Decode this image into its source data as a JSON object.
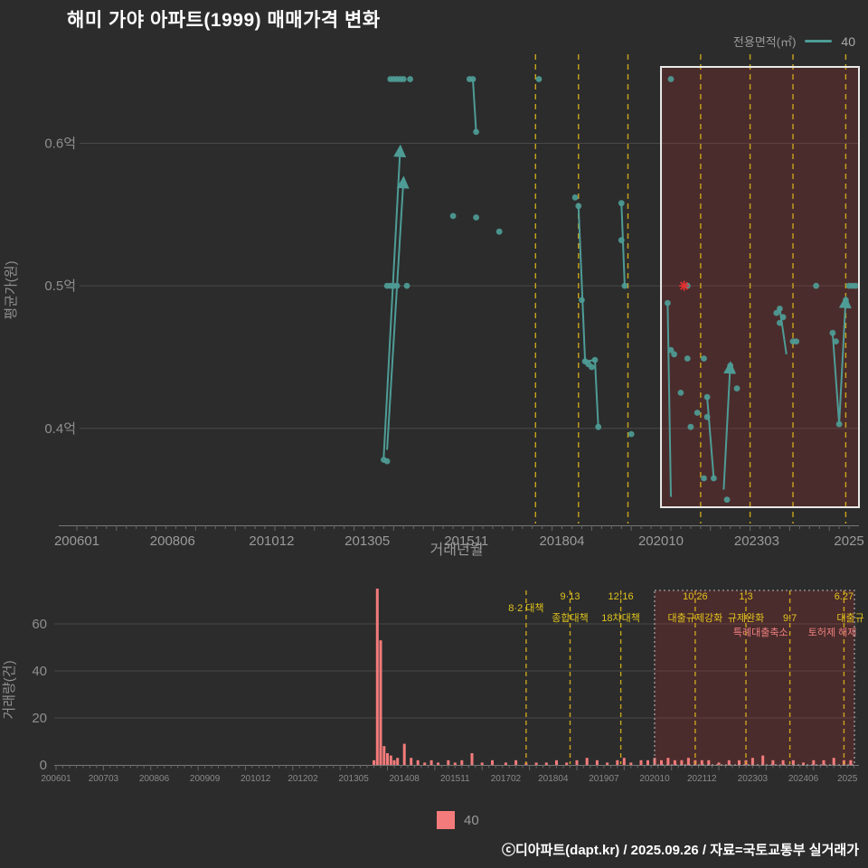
{
  "title": "해미 가야 아파트(1999) 매매가격 변화",
  "legend_top": {
    "label": "전용면적(㎡)",
    "series": "40"
  },
  "legend_bottom": {
    "series": "40"
  },
  "footer": "ⓒ디아파트(dapt.kr) / 2025.09.26 / 자료=국토교통부 실거래가",
  "colors": {
    "background": "#2c2c2c",
    "grid": "#494949",
    "axis_text": "#8f8f8f",
    "teal": "#4e9c96",
    "bar": "#f47b7b",
    "event": "#c9a41c",
    "annotation_yellow": "#e0c41e",
    "annotation_red": "#f08080",
    "box_fill": "rgba(150,45,45,0.30)",
    "box_border_main": "#e9e9e9",
    "box_border_volume": "#a0a0a0",
    "marker_red": "#e03131"
  },
  "chart_data": [
    {
      "type": "scatter",
      "series_name": "40",
      "xlabel": "거래년월",
      "ylabel": "평균가(원)",
      "x_range": [
        "200601",
        "202510"
      ],
      "y_range": [
        0.332,
        0.665
      ],
      "grid": true,
      "y_ticks": [
        {
          "v": 0.4,
          "label": "0.4억"
        },
        {
          "v": 0.5,
          "label": "0.5억"
        },
        {
          "v": 0.6,
          "label": "0.6억"
        }
      ],
      "x_ticks": [
        [
          "200601",
          "200601"
        ],
        [
          "200806",
          "200806"
        ],
        [
          "201012",
          "201012"
        ],
        [
          "201305",
          "201305"
        ],
        [
          "201511",
          "201511"
        ],
        [
          "201804",
          "201804"
        ],
        [
          "202010",
          "202010"
        ],
        [
          "202303",
          "202303"
        ],
        [
          "202507",
          "2025"
        ]
      ],
      "highlight": {
        "from": "202010",
        "to": "202510"
      },
      "event_months": [
        "201708",
        "201809",
        "201912",
        "202110",
        "202301",
        "202402",
        "202506"
      ],
      "x_marker": [
        "202105",
        0.5
      ],
      "points": [
        [
          "201310",
          0.378
        ],
        [
          "201311",
          0.377
        ],
        [
          "201311",
          0.5
        ],
        [
          "201312",
          0.5
        ],
        [
          "201401",
          0.5
        ],
        [
          "201402",
          0.5
        ],
        [
          "201405",
          0.5
        ],
        [
          "201312",
          0.645
        ],
        [
          "201401",
          0.645
        ],
        [
          "201402",
          0.645
        ],
        [
          "201403",
          0.645
        ],
        [
          "201404",
          0.645
        ],
        [
          "201406",
          0.645
        ],
        [
          "201507",
          0.549
        ],
        [
          "201512",
          0.645
        ],
        [
          "201601",
          0.645
        ],
        [
          "201602",
          0.608
        ],
        [
          "201602",
          0.548
        ],
        [
          "201609",
          0.538
        ],
        [
          "201709",
          0.645
        ],
        [
          "201808",
          0.562
        ],
        [
          "201809",
          0.556
        ],
        [
          "201810",
          0.49
        ],
        [
          "201811",
          0.447
        ],
        [
          "201812",
          0.445
        ],
        [
          "201901",
          0.443
        ],
        [
          "201902",
          0.448
        ],
        [
          "201903",
          0.401
        ],
        [
          "201910",
          0.558
        ],
        [
          "201910",
          0.532
        ],
        [
          "201911",
          0.5
        ],
        [
          "202001",
          0.396
        ],
        [
          "202101",
          0.645
        ],
        [
          "202012",
          0.488
        ],
        [
          "202101",
          0.455
        ],
        [
          "202102",
          0.452
        ],
        [
          "202104",
          0.425
        ],
        [
          "202106",
          0.449
        ],
        [
          "202107",
          0.401
        ],
        [
          "202109",
          0.411
        ],
        [
          "202106",
          0.5
        ],
        [
          "202111",
          0.449
        ],
        [
          "202112",
          0.422
        ],
        [
          "202112",
          0.408
        ],
        [
          "202111",
          0.365
        ],
        [
          "202202",
          0.365
        ],
        [
          "202206",
          0.35
        ],
        [
          "202207",
          0.444
        ],
        [
          "202209",
          0.428
        ],
        [
          "202309",
          0.481
        ],
        [
          "202310",
          0.474
        ],
        [
          "202310",
          0.484
        ],
        [
          "202311",
          0.478
        ],
        [
          "202402",
          0.461
        ],
        [
          "202403",
          0.461
        ],
        [
          "202409",
          0.5
        ],
        [
          "202502",
          0.467
        ],
        [
          "202503",
          0.461
        ],
        [
          "202504",
          0.403
        ],
        [
          "202506",
          0.49
        ],
        [
          "202507",
          0.5
        ],
        [
          "202508",
          0.5
        ],
        [
          "202509",
          0.5
        ]
      ],
      "segments": [
        {
          "from": [
            "201310",
            0.38
          ],
          "to": [
            "201403",
            0.597
          ],
          "arrow": true
        },
        {
          "from": [
            "201311",
            0.385
          ],
          "to": [
            "201404",
            0.575
          ],
          "arrow": true
        },
        {
          "from": [
            "201601",
            0.645
          ],
          "to": [
            "201602",
            0.608
          ],
          "arrow": false
        },
        {
          "from": [
            "201809",
            0.556
          ],
          "to": [
            "201811",
            0.447
          ],
          "arrow": false
        },
        {
          "from": [
            "201811",
            0.447
          ],
          "to": [
            "201902",
            0.448
          ],
          "arrow": false
        },
        {
          "from": [
            "201902",
            0.448
          ],
          "to": [
            "201903",
            0.401
          ],
          "arrow": false
        },
        {
          "from": [
            "201910",
            0.558
          ],
          "to": [
            "201911",
            0.5
          ],
          "arrow": false
        },
        {
          "from": [
            "202012",
            0.488
          ],
          "to": [
            "202101",
            0.352
          ],
          "arrow": false
        },
        {
          "from": [
            "202112",
            0.422
          ],
          "to": [
            "202202",
            0.365
          ],
          "arrow": false
        },
        {
          "from": [
            "202205",
            0.357
          ],
          "to": [
            "202207",
            0.445
          ],
          "arrow": true
        },
        {
          "from": [
            "202310",
            0.484
          ],
          "to": [
            "202312",
            0.452
          ],
          "arrow": false
        },
        {
          "from": [
            "202502",
            0.467
          ],
          "to": [
            "202504",
            0.403
          ],
          "arrow": false
        },
        {
          "from": [
            "202504",
            0.403
          ],
          "to": [
            "202506",
            0.491
          ],
          "arrow": true
        }
      ]
    },
    {
      "type": "bar",
      "series_name": "40",
      "ylabel": "거래량(건)",
      "y_ticks": [
        0,
        20,
        40,
        60
      ],
      "x_ticks": [
        [
          "200601",
          "200601"
        ],
        [
          "200703",
          "200703"
        ],
        [
          "200806",
          "200806"
        ],
        [
          "200909",
          "200909"
        ],
        [
          "201012",
          "201012"
        ],
        [
          "201202",
          "201202"
        ],
        [
          "201305",
          "201305"
        ],
        [
          "201408",
          "201408"
        ],
        [
          "201511",
          "201511"
        ],
        [
          "201702",
          "201702"
        ],
        [
          "201804",
          "201804"
        ],
        [
          "201907",
          "201907"
        ],
        [
          "202010",
          "202010"
        ],
        [
          "202112",
          "202112"
        ],
        [
          "202303",
          "202303"
        ],
        [
          "202406",
          "202406"
        ],
        [
          "202507",
          "2025"
        ]
      ],
      "highlight": {
        "from": "202010",
        "to": "202509"
      },
      "event_months": [
        "201708",
        "201809",
        "201912",
        "202110",
        "202301",
        "202402",
        "202506"
      ],
      "bars": [
        [
          "201311",
          2
        ],
        [
          "201312",
          75
        ],
        [
          "201401",
          53
        ],
        [
          "201402",
          8
        ],
        [
          "201403",
          5
        ],
        [
          "201404",
          4
        ],
        [
          "201405",
          2
        ],
        [
          "201406",
          3
        ],
        [
          "201408",
          9
        ],
        [
          "201410",
          3
        ],
        [
          "201412",
          2
        ],
        [
          "201502",
          1
        ],
        [
          "201504",
          2
        ],
        [
          "201506",
          1
        ],
        [
          "201509",
          2
        ],
        [
          "201511",
          1
        ],
        [
          "201601",
          2
        ],
        [
          "201604",
          5
        ],
        [
          "201607",
          1
        ],
        [
          "201610",
          2
        ],
        [
          "201702",
          1
        ],
        [
          "201705",
          2
        ],
        [
          "201708",
          1
        ],
        [
          "201711",
          1
        ],
        [
          "201802",
          1
        ],
        [
          "201805",
          2
        ],
        [
          "201808",
          1
        ],
        [
          "201811",
          2
        ],
        [
          "201902",
          3
        ],
        [
          "201905",
          2
        ],
        [
          "201908",
          1
        ],
        [
          "201911",
          2
        ],
        [
          "202001",
          3
        ],
        [
          "202003",
          1
        ],
        [
          "202006",
          2
        ],
        [
          "202008",
          2
        ],
        [
          "202010",
          3
        ],
        [
          "202012",
          2
        ],
        [
          "202102",
          3
        ],
        [
          "202104",
          2
        ],
        [
          "202106",
          2
        ],
        [
          "202108",
          3
        ],
        [
          "202110",
          2
        ],
        [
          "202112",
          2
        ],
        [
          "202202",
          2
        ],
        [
          "202205",
          1
        ],
        [
          "202208",
          2
        ],
        [
          "202211",
          2
        ],
        [
          "202301",
          2
        ],
        [
          "202303",
          3
        ],
        [
          "202306",
          4
        ],
        [
          "202309",
          2
        ],
        [
          "202312",
          2
        ],
        [
          "202403",
          2
        ],
        [
          "202406",
          1
        ],
        [
          "202409",
          2
        ],
        [
          "202412",
          2
        ],
        [
          "202503",
          3
        ],
        [
          "202506",
          2
        ],
        [
          "202508",
          2
        ]
      ],
      "annotations": [
        {
          "m": "201708",
          "y": 28,
          "text": "8·2 대책",
          "color": "y",
          "anchor": "middle",
          "dx": 0
        },
        {
          "m": "201809",
          "y": 15,
          "text": "9·13",
          "color": "y",
          "anchor": "middle",
          "dx": 0
        },
        {
          "m": "201809",
          "y": 39,
          "text": "종합대책",
          "color": "y",
          "anchor": "middle",
          "dx": 0
        },
        {
          "m": "201912",
          "y": 15,
          "text": "12·16",
          "color": "y",
          "anchor": "middle",
          "dx": 0
        },
        {
          "m": "201912",
          "y": 39,
          "text": "18차대책",
          "color": "y",
          "anchor": "middle",
          "dx": 0
        },
        {
          "m": "202110",
          "y": 15,
          "text": "10.26",
          "color": "y",
          "anchor": "middle",
          "dx": 0
        },
        {
          "m": "202110",
          "y": 39,
          "text": "대출규제강화",
          "color": "y",
          "anchor": "middle",
          "dx": 0
        },
        {
          "m": "202301",
          "y": 15,
          "text": "1.3",
          "color": "y",
          "anchor": "middle",
          "dx": 0
        },
        {
          "m": "202301",
          "y": 39,
          "text": "규제완화",
          "color": "y",
          "anchor": "middle",
          "dx": 0
        },
        {
          "m": "202402",
          "y": 39,
          "text": "9.7",
          "color": "y",
          "anchor": "middle",
          "dx": 0
        },
        {
          "m": "202402",
          "y": 55,
          "text": "특례대출축소",
          "color": "r",
          "anchor": "end",
          "dx": -2
        },
        {
          "m": "202506",
          "y": 55,
          "text": "토허제 해제",
          "color": "r",
          "anchor": "end",
          "dx": 14
        },
        {
          "m": "202506",
          "y": 15,
          "text": "6.27",
          "color": "y",
          "anchor": "middle",
          "dx": 0
        },
        {
          "m": "202506",
          "y": 39,
          "text": "대출규",
          "color": "y",
          "anchor": "start",
          "dx": -8
        }
      ]
    }
  ]
}
